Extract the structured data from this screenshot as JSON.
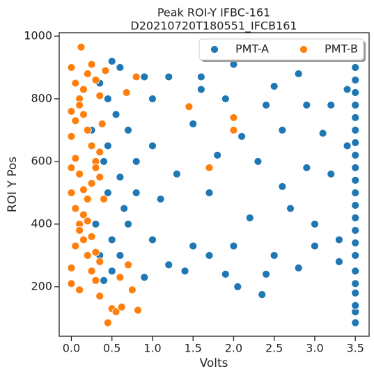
{
  "chart_data": {
    "type": "scatter",
    "title": "Peak ROI-Y IFBC-161",
    "subtitle": "D20210720T180551_IFCB161",
    "x_label": "Volts",
    "y_label": "ROI Y Pos",
    "xlim": [
      -0.15,
      3.67
    ],
    "ylim": [
      42,
      1011
    ],
    "xticks": [
      {
        "value": 0,
        "label": "0.0"
      },
      0.5,
      {
        "value": 1,
        "label": "1.0"
      },
      1.5,
      {
        "value": 2,
        "label": "2.0"
      },
      2.5,
      {
        "value": 3,
        "label": "3.0"
      },
      3.5
    ],
    "yticks": [
      200,
      400,
      600,
      800,
      1000
    ],
    "legend": "upper right",
    "series": [
      {
        "name": "PMT-A",
        "color": "#1f77b4",
        "x": [
          3.5,
          3.5,
          3.5,
          3.5,
          3.5,
          3.5,
          3.5,
          3.5,
          3.5,
          3.5,
          3.5,
          3.5,
          3.5,
          3.5,
          3.5,
          3.5,
          3.5,
          3.5,
          3.5,
          3.5,
          3.5,
          3.5,
          2.0,
          1.6,
          1.9,
          2.4,
          2.9,
          3.2,
          2.8,
          1.2,
          0.9,
          0.6,
          0.5,
          1.0,
          1.5,
          2.1,
          2.6,
          3.1,
          3.4,
          1.8,
          2.3,
          2.9,
          1.3,
          0.8,
          0.7,
          1.1,
          1.7,
          2.2,
          2.7,
          3.0,
          3.3,
          2.5,
          2.0,
          1.5,
          1.0,
          0.7,
          0.6,
          0.5,
          0.4,
          1.4,
          1.9,
          2.35,
          2.8,
          3.3,
          2.05,
          1.7,
          1.2,
          0.9,
          0.45,
          0.45,
          0.45,
          0.55,
          0.6,
          0.65,
          0.5,
          0.35,
          0.4,
          0.35,
          0.3,
          0.25,
          3.0,
          2.6,
          1.6,
          3.4,
          2.4,
          0.8,
          1.0,
          2.5,
          3.2
        ],
        "values": [
          85,
          120,
          140,
          180,
          210,
          250,
          300,
          340,
          380,
          420,
          460,
          500,
          540,
          580,
          620,
          660,
          700,
          740,
          780,
          820,
          860,
          900,
          910,
          830,
          800,
          780,
          780,
          780,
          880,
          870,
          870,
          900,
          920,
          800,
          720,
          680,
          700,
          690,
          650,
          620,
          600,
          580,
          560,
          600,
          700,
          480,
          500,
          420,
          450,
          400,
          350,
          300,
          330,
          330,
          350,
          400,
          300,
          250,
          220,
          250,
          240,
          175,
          260,
          280,
          200,
          300,
          270,
          230,
          500,
          650,
          800,
          750,
          550,
          450,
          350,
          300,
          600,
          850,
          400,
          700,
          330,
          520,
          870,
          830,
          240,
          500,
          650,
          840,
          560
        ]
      },
      {
        "name": "PMT-B",
        "color": "#ff7f0e",
        "x": [
          0.0,
          0.05,
          0.1,
          0.15,
          0.2,
          0.25,
          0.3,
          0.35,
          0.0,
          0.05,
          0.1,
          0.15,
          0.2,
          0.25,
          0.3,
          0.35,
          0.0,
          0.05,
          0.1,
          0.15,
          0.2,
          0.25,
          0.3,
          0.35,
          0.0,
          0.05,
          0.1,
          0.15,
          0.2,
          0.25,
          0.3,
          0.35,
          0.0,
          0.05,
          0.1,
          0.15,
          0.2,
          0.25,
          0.3,
          0.0,
          0.1,
          0.12,
          0.45,
          0.5,
          0.55,
          0.62,
          0.75,
          0.82,
          0.35,
          0.6,
          0.7,
          0.8,
          0.68,
          1.45,
          1.7,
          2.0,
          2.0,
          0.4,
          0.38,
          0.42,
          0.0
        ],
        "values": [
          900,
          850,
          800,
          750,
          700,
          650,
          600,
          550,
          500,
          450,
          400,
          350,
          300,
          250,
          220,
          280,
          210,
          330,
          380,
          430,
          480,
          530,
          580,
          630,
          680,
          730,
          780,
          830,
          880,
          910,
          860,
          810,
          760,
          610,
          560,
          510,
          410,
          360,
          310,
          260,
          190,
          965,
          85,
          130,
          120,
          135,
          190,
          125,
          170,
          230,
          270,
          870,
          820,
          775,
          580,
          740,
          700,
          480,
          720,
          890,
          580
        ]
      }
    ]
  }
}
